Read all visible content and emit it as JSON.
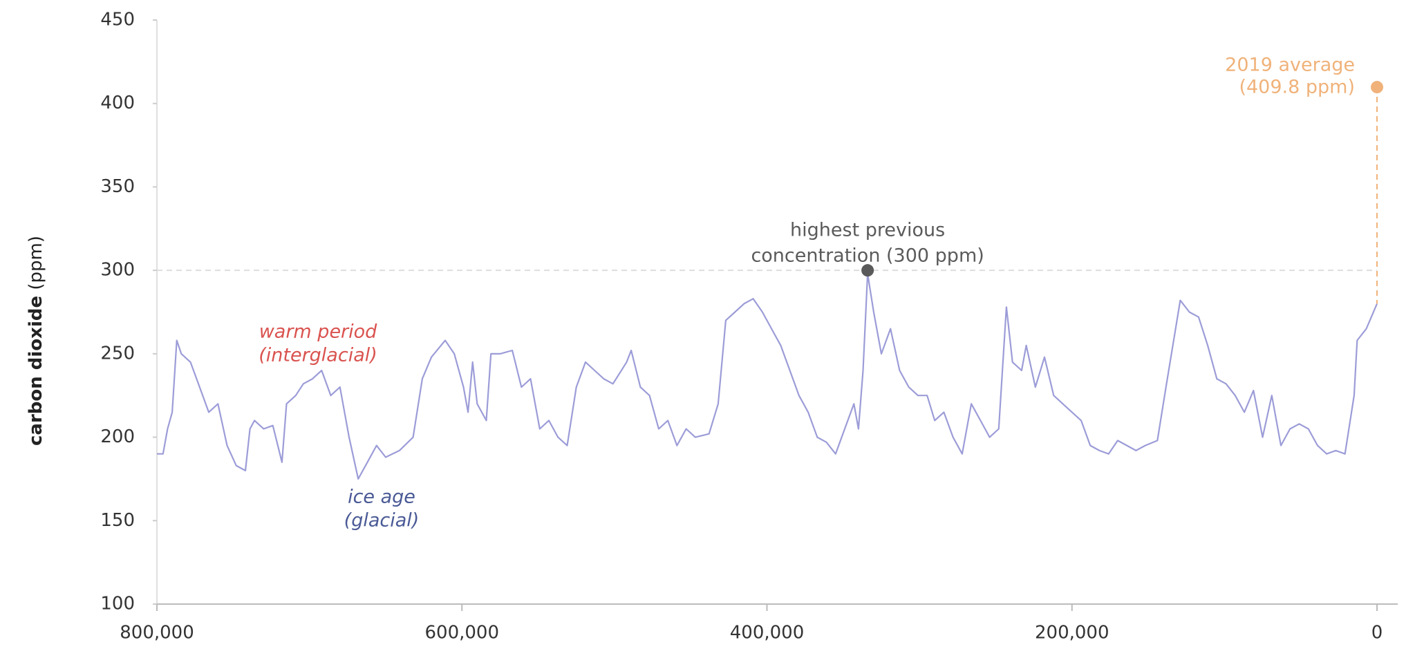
{
  "chart_data": {
    "type": "line",
    "ylabel": [
      "carbon dioxide",
      "(ppm)"
    ],
    "xlim": [
      800000,
      0
    ],
    "xticks": [
      {
        "value": 800000,
        "label": "800,000"
      },
      {
        "value": 600000,
        "label": "600,000"
      },
      {
        "value": 400000,
        "label": "400,000"
      },
      {
        "value": 200000,
        "label": "200,000"
      },
      0
    ],
    "ylim": [
      100,
      450
    ],
    "yticks": [
      100,
      150,
      200,
      250,
      300,
      350,
      400,
      450
    ],
    "x": [
      800000,
      796000,
      793000,
      790000,
      787000,
      784000,
      778000,
      772000,
      766000,
      760000,
      754000,
      748000,
      742000,
      739000,
      736000,
      730000,
      724000,
      718000,
      715000,
      709000,
      704000,
      698000,
      692000,
      686000,
      680000,
      677000,
      674000,
      668000,
      662000,
      656000,
      650000,
      641000,
      632000,
      626000,
      620000,
      611000,
      605000,
      599000,
      596000,
      593000,
      590000,
      584000,
      581000,
      575000,
      567000,
      561000,
      555000,
      549000,
      543000,
      537000,
      531000,
      525000,
      519000,
      513000,
      507000,
      501000,
      492000,
      489000,
      483000,
      477000,
      471000,
      465000,
      459000,
      453000,
      447000,
      438000,
      432000,
      427000,
      421000,
      415000,
      409000,
      403000,
      397000,
      391000,
      385000,
      379000,
      373000,
      367000,
      361000,
      355000,
      349000,
      343000,
      340000,
      337000,
      334000,
      330000,
      325000,
      319000,
      313000,
      307000,
      301000,
      295000,
      290000,
      284000,
      278000,
      272000,
      266000,
      260000,
      254000,
      248000,
      243000,
      239000,
      233000,
      230000,
      224000,
      218000,
      212000,
      206000,
      200000,
      194000,
      188000,
      182000,
      176000,
      170000,
      164000,
      158000,
      152000,
      144000,
      138000,
      129000,
      123000,
      117000,
      111000,
      105000,
      99000,
      93000,
      87000,
      81000,
      75000,
      69000,
      63000,
      57000,
      51000,
      45000,
      39000,
      33000,
      27000,
      21000,
      15000,
      13000,
      7000,
      0
    ],
    "series": [
      {
        "color": "#9c9cd8",
        "values": [
          190,
          190,
          205,
          215,
          258,
          250,
          245,
          230,
          215,
          220,
          195,
          183,
          180,
          205,
          210,
          205,
          207,
          185,
          220,
          225,
          232,
          235,
          240,
          225,
          230,
          215,
          200,
          175,
          185,
          195,
          188,
          192,
          200,
          235,
          248,
          258,
          250,
          230,
          215,
          245,
          220,
          210,
          250,
          250,
          252,
          230,
          235,
          205,
          210,
          200,
          195,
          230,
          245,
          240,
          235,
          232,
          245,
          252,
          230,
          225,
          205,
          210,
          195,
          205,
          200,
          202,
          220,
          270,
          275,
          280,
          283,
          275,
          265,
          255,
          240,
          225,
          215,
          200,
          197,
          190,
          205,
          220,
          205,
          240,
          298,
          275,
          250,
          265,
          240,
          230,
          225,
          225,
          210,
          215,
          200,
          190,
          220,
          210,
          200,
          205,
          278,
          245,
          240,
          255,
          230,
          248,
          225,
          220,
          215,
          210,
          195,
          192,
          190,
          198,
          195,
          192,
          195,
          198,
          232,
          282,
          275,
          272,
          255,
          235,
          232,
          225,
          215,
          228,
          200,
          225,
          195,
          205,
          208,
          205,
          195,
          190,
          192,
          190,
          225,
          258,
          265,
          280
        ]
      }
    ],
    "annotations": [
      {
        "lines": [
          "highest previous",
          "concentration (300 ppm)"
        ],
        "x": 334000,
        "y": 300,
        "color": "#5a5a5a",
        "guide": "horizontal"
      },
      {
        "lines": [
          "2019 average",
          "(409.8 ppm)"
        ],
        "x": 0,
        "y": 409.8,
        "color": "#f0b27a",
        "guide": "vertical"
      },
      {
        "lines": [
          "warm period",
          "(interglacial)"
        ],
        "color": "#d9534f",
        "style": "italic"
      },
      {
        "lines": [
          "ice age",
          "(glacial)"
        ],
        "color": "#4a5a96",
        "style": "italic"
      }
    ]
  }
}
